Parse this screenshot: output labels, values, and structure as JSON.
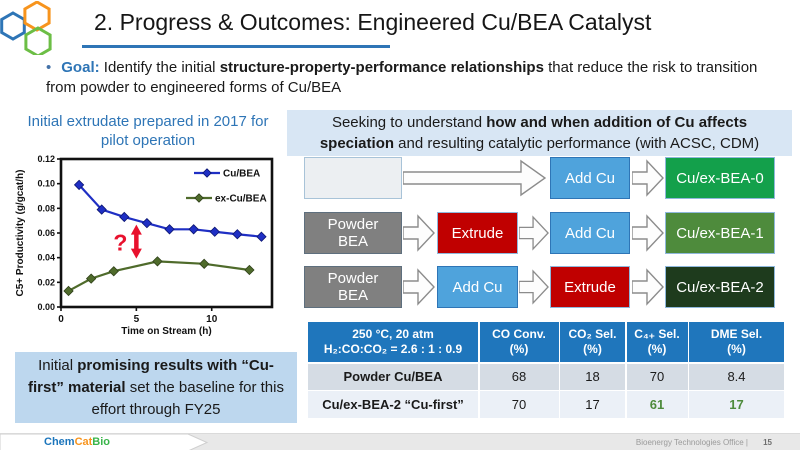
{
  "slide": {
    "title": "2. Progress & Outcomes: Engineered Cu/BEA Catalyst",
    "page_number": "15",
    "footer": {
      "brand_chem": "Chem",
      "brand_cat": "Cat",
      "brand_bio": "Bio",
      "right_text": "Bioenergy Technologies Office  |"
    }
  },
  "goal": {
    "bullet": "•",
    "label": "Goal:",
    "pre": " Identify the initial ",
    "bold": "structure-property-performance relationships",
    "post": " that reduce the risk to transition from powder to engineered forms of Cu/BEA"
  },
  "left": {
    "chart_title": "Initial extrudate prepared in 2017 for pilot operation",
    "callout": {
      "pre": "Initial ",
      "bold": "promising results with “Cu-first” material",
      "post": " set the baseline for this effort through FY25"
    }
  },
  "right_header": {
    "pre": "Seeking to understand ",
    "bold": "how and when addition of Cu affects speciation",
    "post": " and resulting catalytic performance (with ACSC, CDM)"
  },
  "flow": {
    "rows": [
      {
        "steps": [
          {
            "label": "",
            "type": "empty"
          },
          {
            "label": "Add Cu",
            "type": "add-cu"
          },
          {
            "label": "Cu/ex-BEA-0",
            "type": "result"
          }
        ]
      },
      {
        "steps": [
          {
            "label": "Powder\nBEA",
            "type": "powder"
          },
          {
            "label": "Extrude",
            "type": "extrude"
          },
          {
            "label": "Add Cu",
            "type": "add-cu"
          },
          {
            "label": "Cu/ex-BEA-1",
            "type": "result"
          }
        ]
      },
      {
        "steps": [
          {
            "label": "Powder\nBEA",
            "type": "powder"
          },
          {
            "label": "Add Cu",
            "type": "add-cu"
          },
          {
            "label": "Extrude",
            "type": "extrude"
          },
          {
            "label": "Cu/ex-BEA-2",
            "type": "result"
          }
        ]
      }
    ]
  },
  "table": {
    "header": [
      "250 °C, 20 atm\nH₂:CO:CO₂ = 2.6 : 1 : 0.9",
      "CO Conv.\n(%)",
      "CO₂ Sel.\n(%)",
      "C₄₊ Sel.\n(%)",
      "DME Sel.\n(%)"
    ],
    "rows": [
      {
        "label": "Powder Cu/BEA",
        "values": [
          "68",
          "18",
          "70",
          "8.4"
        ]
      },
      {
        "label": "Cu/ex-BEA-2 “Cu-first”",
        "values": [
          "70",
          "17",
          "61",
          "17"
        ]
      }
    ]
  },
  "chart_data": {
    "type": "line",
    "title": "",
    "xlabel": "Time on Stream (h)",
    "ylabel": "C5+ Productivity (g/gcat/h)",
    "xlim": [
      0,
      14
    ],
    "ylim": [
      0,
      0.12
    ],
    "xticks": [
      0,
      5,
      10
    ],
    "yticks": [
      0,
      0.02,
      0.04,
      0.06,
      0.08,
      0.1,
      0.12
    ],
    "grid": false,
    "legend_position": "upper right",
    "series": [
      {
        "name": "Cu/BEA",
        "color": "#1F2FC4",
        "edge": "#0A1470",
        "marker": "diamond",
        "x": [
          1.2,
          2.7,
          4.2,
          5.7,
          7.2,
          8.8,
          10.2,
          11.7,
          13.3
        ],
        "y": [
          0.099,
          0.079,
          0.073,
          0.068,
          0.063,
          0.063,
          0.061,
          0.059,
          0.057
        ]
      },
      {
        "name": "ex-Cu/BEA",
        "color": "#4F6B2B",
        "edge": "#2E3F18",
        "marker": "diamond",
        "x": [
          0.5,
          2.0,
          3.5,
          6.4,
          9.5,
          12.5
        ],
        "y": [
          0.013,
          0.023,
          0.029,
          0.037,
          0.035,
          0.03
        ]
      }
    ],
    "annotation": {
      "text": "?",
      "x": 5,
      "y_from": 0.04,
      "y_to": 0.066,
      "color": "#E8112D"
    }
  },
  "colors": {
    "accent_blue": "#2E75B6",
    "table_header_bg": "#1F76BC",
    "panel_light_blue": "#D8E6F4",
    "callout_bg": "#BDD7EE",
    "box_blue": "#4FA3DC",
    "box_red": "#C00000",
    "box_gray": "#808080",
    "box_green_bright": "#13A04B",
    "box_green_mid": "#4E8B3C",
    "box_green_dark": "#1E3B1D",
    "table_green_text": "#4E8B3C",
    "brand_blue": "#1B75BC",
    "brand_orange": "#F7941D",
    "brand_green": "#39B54A"
  }
}
